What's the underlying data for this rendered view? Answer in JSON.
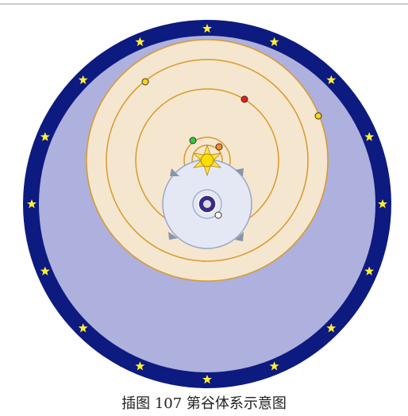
{
  "caption": "插图 107 第谷体系示意图"
}
